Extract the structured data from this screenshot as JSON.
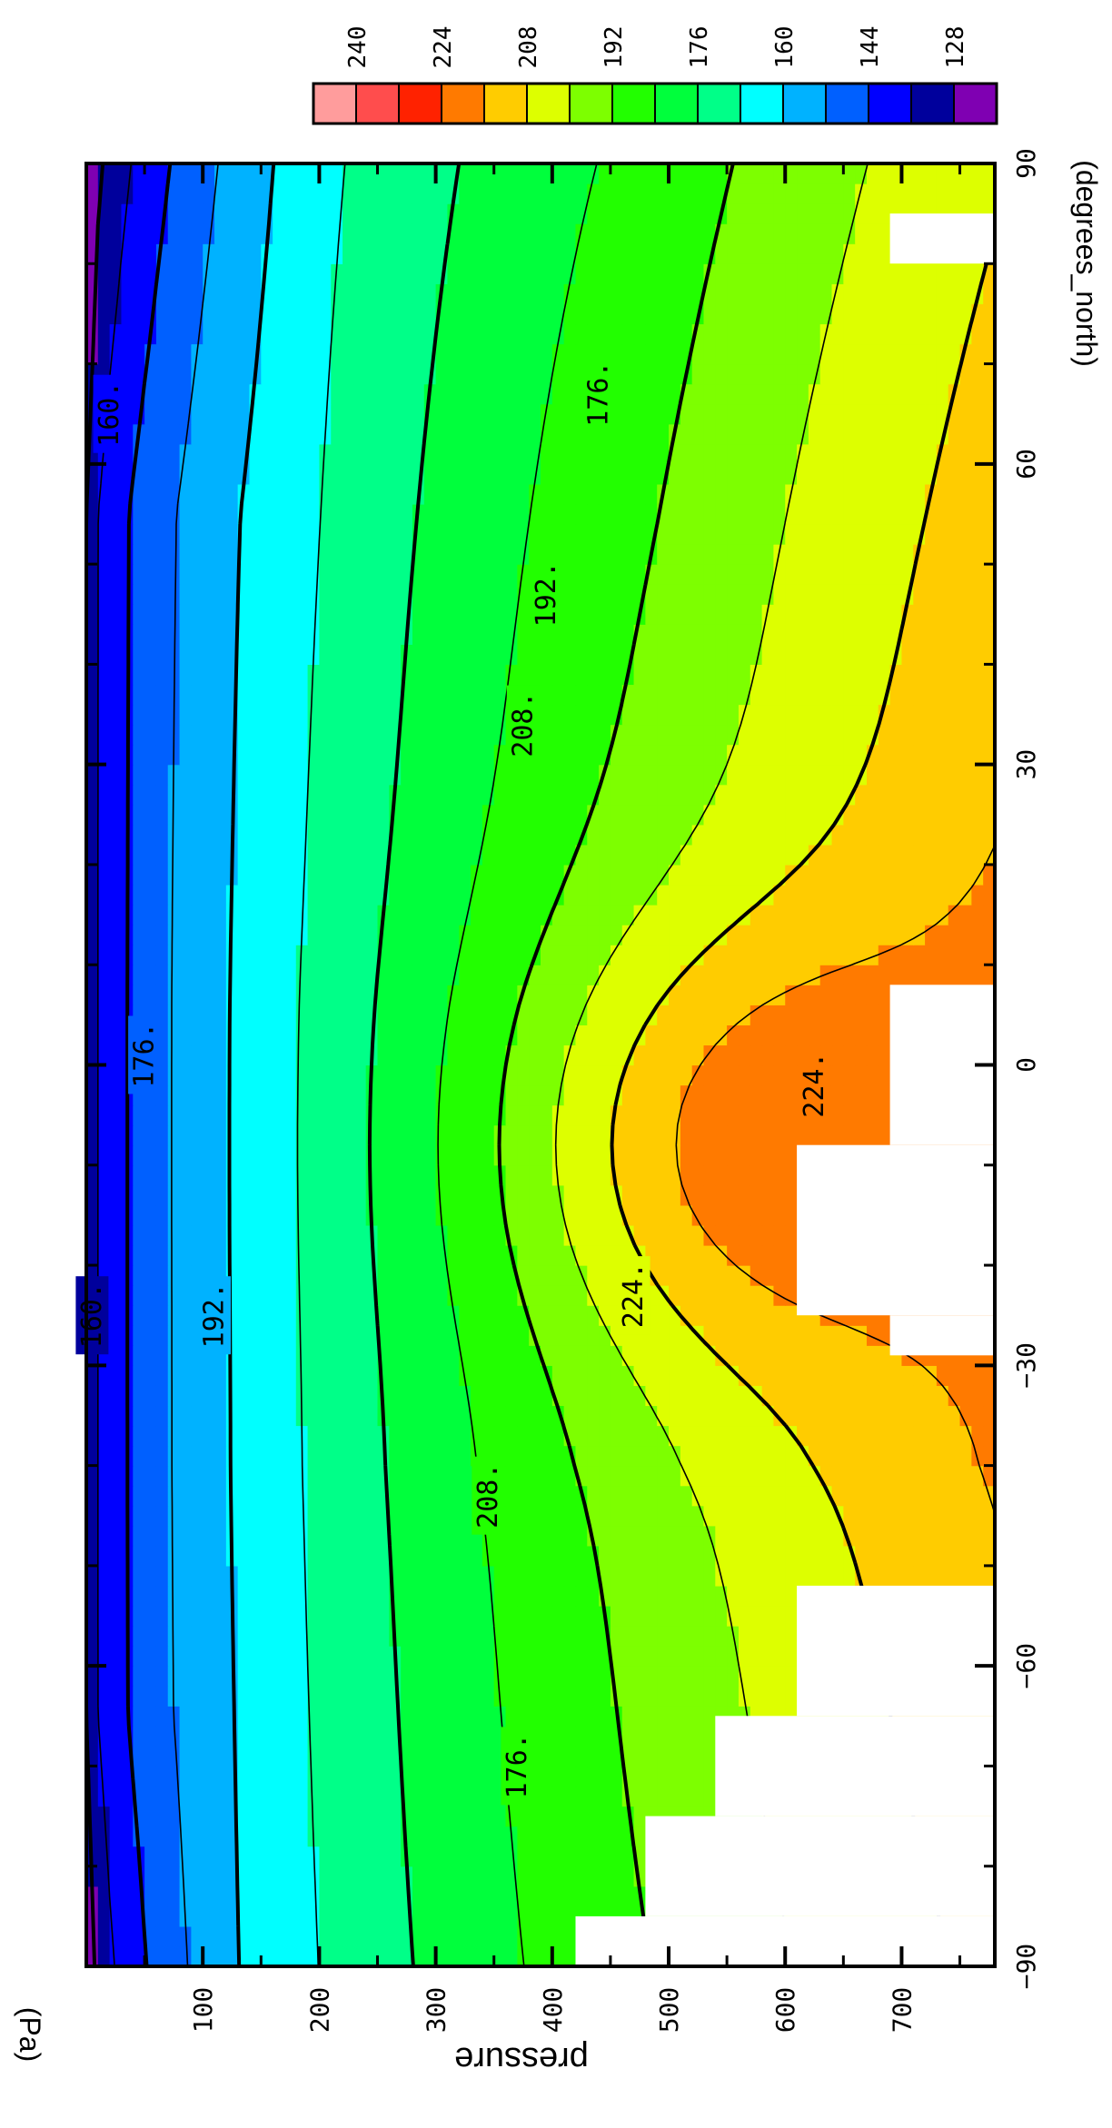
{
  "chart_data": {
    "type": "heatmap",
    "title": "",
    "xlabel": "(degrees_north)",
    "ylabel": "pressure",
    "y_unit": "(Pa)",
    "xlim": [
      -90,
      90
    ],
    "ylim": [
      0,
      780
    ],
    "y_inverted": true,
    "x_ticks": [
      -90,
      -60,
      -30,
      0,
      30,
      60,
      90
    ],
    "x_tick_labels": [
      "−90",
      "−60",
      "−30",
      "0",
      "30",
      "60",
      "90"
    ],
    "y_ticks": [
      100,
      200,
      300,
      400,
      500,
      600,
      700
    ],
    "y_tick_labels": [
      "100",
      "200",
      "300",
      "400",
      "500",
      "600",
      "700"
    ],
    "colorbar": {
      "levels": [
        128,
        136,
        144,
        152,
        160,
        168,
        176,
        184,
        192,
        200,
        208,
        216,
        224,
        232,
        240
      ],
      "labels": [
        "128",
        "144",
        "160",
        "176",
        "192",
        "208",
        "224",
        "240"
      ],
      "colors": [
        "#7f00b2",
        "#00009c",
        "#0000ff",
        "#0060ff",
        "#00b2ff",
        "#00ffff",
        "#00ff88",
        "#00ff3c",
        "#22ff00",
        "#7dff00",
        "#ddff00",
        "#ffcc00",
        "#ff7a00",
        "#ff2200",
        "#ff4d4d",
        "#ff9c9c"
      ]
    },
    "contour_labels": [
      {
        "text": "176.",
        "x": -70,
        "y": 370
      },
      {
        "text": "192.",
        "x": -25,
        "y": 110
      },
      {
        "text": "176.",
        "x": 1,
        "y": 50
      },
      {
        "text": "160.",
        "x": -25,
        "y": 5
      },
      {
        "text": "224.",
        "x": -23,
        "y": 470
      },
      {
        "text": "224.",
        "x": -2,
        "y": 625
      },
      {
        "text": "208.",
        "x": -43,
        "y": 345
      },
      {
        "text": "208.",
        "x": 34,
        "y": 375
      },
      {
        "text": "192.",
        "x": 47,
        "y": 395
      },
      {
        "text": "176.",
        "x": 67,
        "y": 440
      },
      {
        "text": "160.",
        "x": 65,
        "y": 20
      }
    ],
    "missing_regions": [
      {
        "x": [
          -90,
          -85
        ],
        "y": [
          420,
          780
        ]
      },
      {
        "x": [
          -85,
          -75
        ],
        "y": [
          480,
          780
        ]
      },
      {
        "x": [
          -75,
          -65
        ],
        "y": [
          540,
          780
        ]
      },
      {
        "x": [
          -65,
          -52
        ],
        "y": [
          610,
          780
        ]
      },
      {
        "x": [
          -8,
          8
        ],
        "y": [
          690,
          780
        ]
      },
      {
        "x": [
          -25,
          -8
        ],
        "y": [
          610,
          780
        ]
      },
      {
        "x": [
          -29,
          -25
        ],
        "y": [
          690,
          780
        ]
      },
      {
        "x": [
          80,
          85
        ],
        "y": [
          690,
          780
        ]
      }
    ]
  }
}
